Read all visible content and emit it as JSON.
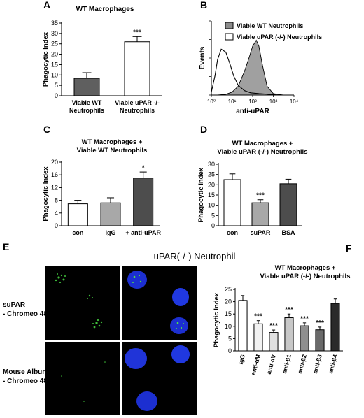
{
  "panels": {
    "A": "A",
    "B": "B",
    "C": "C",
    "D": "D",
    "E": "E",
    "F": "F"
  },
  "panel_e": {
    "title": "uPAR(-/-) Neutrophil",
    "row1_label_1": "suPAR",
    "row1_label_2": "- Chromeo 488",
    "row2_label_1": "Mouse Albumin",
    "row2_label_2": "- Chromeo 488"
  },
  "chart_data": [
    {
      "id": "A",
      "type": "bar",
      "title": "WT Macrophages",
      "ylabel": "Phagocytic Index",
      "ylim": [
        0,
        35
      ],
      "yticks": [
        0,
        5,
        10,
        15,
        20,
        25,
        30,
        35
      ],
      "categories": [
        "Viable WT Neutrophils",
        "Viable uPAR -/- Neutrophils"
      ],
      "category_lines": [
        [
          "Viable WT",
          "Neutrophils"
        ],
        [
          "Viable uPAR -/-",
          "Neutrophils"
        ]
      ],
      "values": [
        8.4,
        26.0
      ],
      "errors": [
        2.7,
        2.5
      ],
      "colors": [
        "#5f5f5f",
        "#ffffff"
      ],
      "annotations": [
        "",
        "***"
      ]
    },
    {
      "id": "B",
      "type": "area",
      "xlabel": "anti-uPAR",
      "ylabel": "Events",
      "xscale": "log",
      "xticks": [
        "10⁰",
        "10¹",
        "10²",
        "10³",
        "10⁴"
      ],
      "ylim": [
        0,
        100
      ],
      "legend": [
        "Viable WT Neutrophils",
        "Viable uPAR (-/-) Neutrophils"
      ],
      "legend_colors": [
        "#8c8c8c",
        "#ffffff"
      ],
      "series": [
        {
          "name": "Viable WT Neutrophils",
          "fill": "#a0a0a0",
          "x": [
            1,
            2,
            5,
            10,
            20,
            40,
            70,
            100,
            150,
            200,
            300,
            500,
            1000,
            3000,
            10000
          ],
          "y": [
            0,
            0,
            1,
            4,
            12,
            32,
            52,
            66,
            74,
            66,
            40,
            12,
            2,
            0,
            0
          ]
        },
        {
          "name": "Viable uPAR (-/-) Neutrophils",
          "fill": "none",
          "x": [
            1,
            1.5,
            2,
            3,
            5,
            8,
            12,
            20,
            40,
            80,
            200,
            600,
            2000,
            10000
          ],
          "y": [
            4,
            26,
            48,
            62,
            58,
            42,
            26,
            13,
            6,
            3,
            2,
            1,
            0,
            0
          ]
        }
      ]
    },
    {
      "id": "C",
      "type": "bar",
      "title": "WT Macrophages + Viable WT Neutrophils",
      "title_lines": [
        "WT Macrophages +",
        "Viable WT Neutrophils"
      ],
      "ylabel": "Phagocytic Index",
      "ylim": [
        0,
        20
      ],
      "yticks": [
        0,
        4,
        8,
        12,
        16,
        20
      ],
      "categories": [
        "con",
        "IgG",
        "+ anti-uPAR"
      ],
      "values": [
        6.9,
        7.2,
        15.0
      ],
      "errors": [
        1.1,
        1.6,
        1.9
      ],
      "colors": [
        "#ffffff",
        "#a8a8a8",
        "#4d4d4d"
      ],
      "annotations": [
        "",
        "",
        "*"
      ]
    },
    {
      "id": "D",
      "type": "bar",
      "title": "WT Macrophages + Viable uPAR (-/-) Neutrophils",
      "title_lines": [
        "WT Macrophages +",
        "Viable uPAR (-/-) Neutrophils"
      ],
      "ylabel": "Phagocytic Index",
      "ylim": [
        0,
        30
      ],
      "yticks": [
        0,
        5,
        10,
        15,
        20,
        25,
        30
      ],
      "categories": [
        "con",
        "suPAR",
        "BSA"
      ],
      "values": [
        22.5,
        11.2,
        20.5
      ],
      "errors": [
        2.8,
        1.5,
        2.2
      ],
      "colors": [
        "#ffffff",
        "#a8a8a8",
        "#4d4d4d"
      ],
      "annotations": [
        "",
        "***",
        ""
      ]
    },
    {
      "id": "F",
      "type": "bar",
      "title": "WT Macrophages + Viable uPAR (-/-) Neutrophils",
      "title_lines": [
        "WT Macrophages +",
        "Viable uPAR (-/-) Neutrophils"
      ],
      "ylabel": "Phagocytic Index",
      "ylim": [
        0,
        25
      ],
      "yticks": [
        0,
        5,
        10,
        15,
        20,
        25
      ],
      "categories": [
        "IgG",
        "anti-αM",
        "anti-αV",
        "anti-β1",
        "anti-β2",
        "anti-β3",
        "anti-β4"
      ],
      "values": [
        20.5,
        11.0,
        7.5,
        13.5,
        10.2,
        8.6,
        19.3
      ],
      "errors": [
        2.0,
        1.3,
        1.0,
        1.5,
        1.2,
        1.1,
        1.8
      ],
      "colors": [
        "#ffffff",
        "#f2f2f2",
        "#e0e0e0",
        "#c8c8c8",
        "#8f8f8f",
        "#6a6a6a",
        "#2a2a2a"
      ],
      "annotations": [
        "",
        "***",
        "***",
        "***",
        "***",
        "***",
        ""
      ]
    }
  ]
}
